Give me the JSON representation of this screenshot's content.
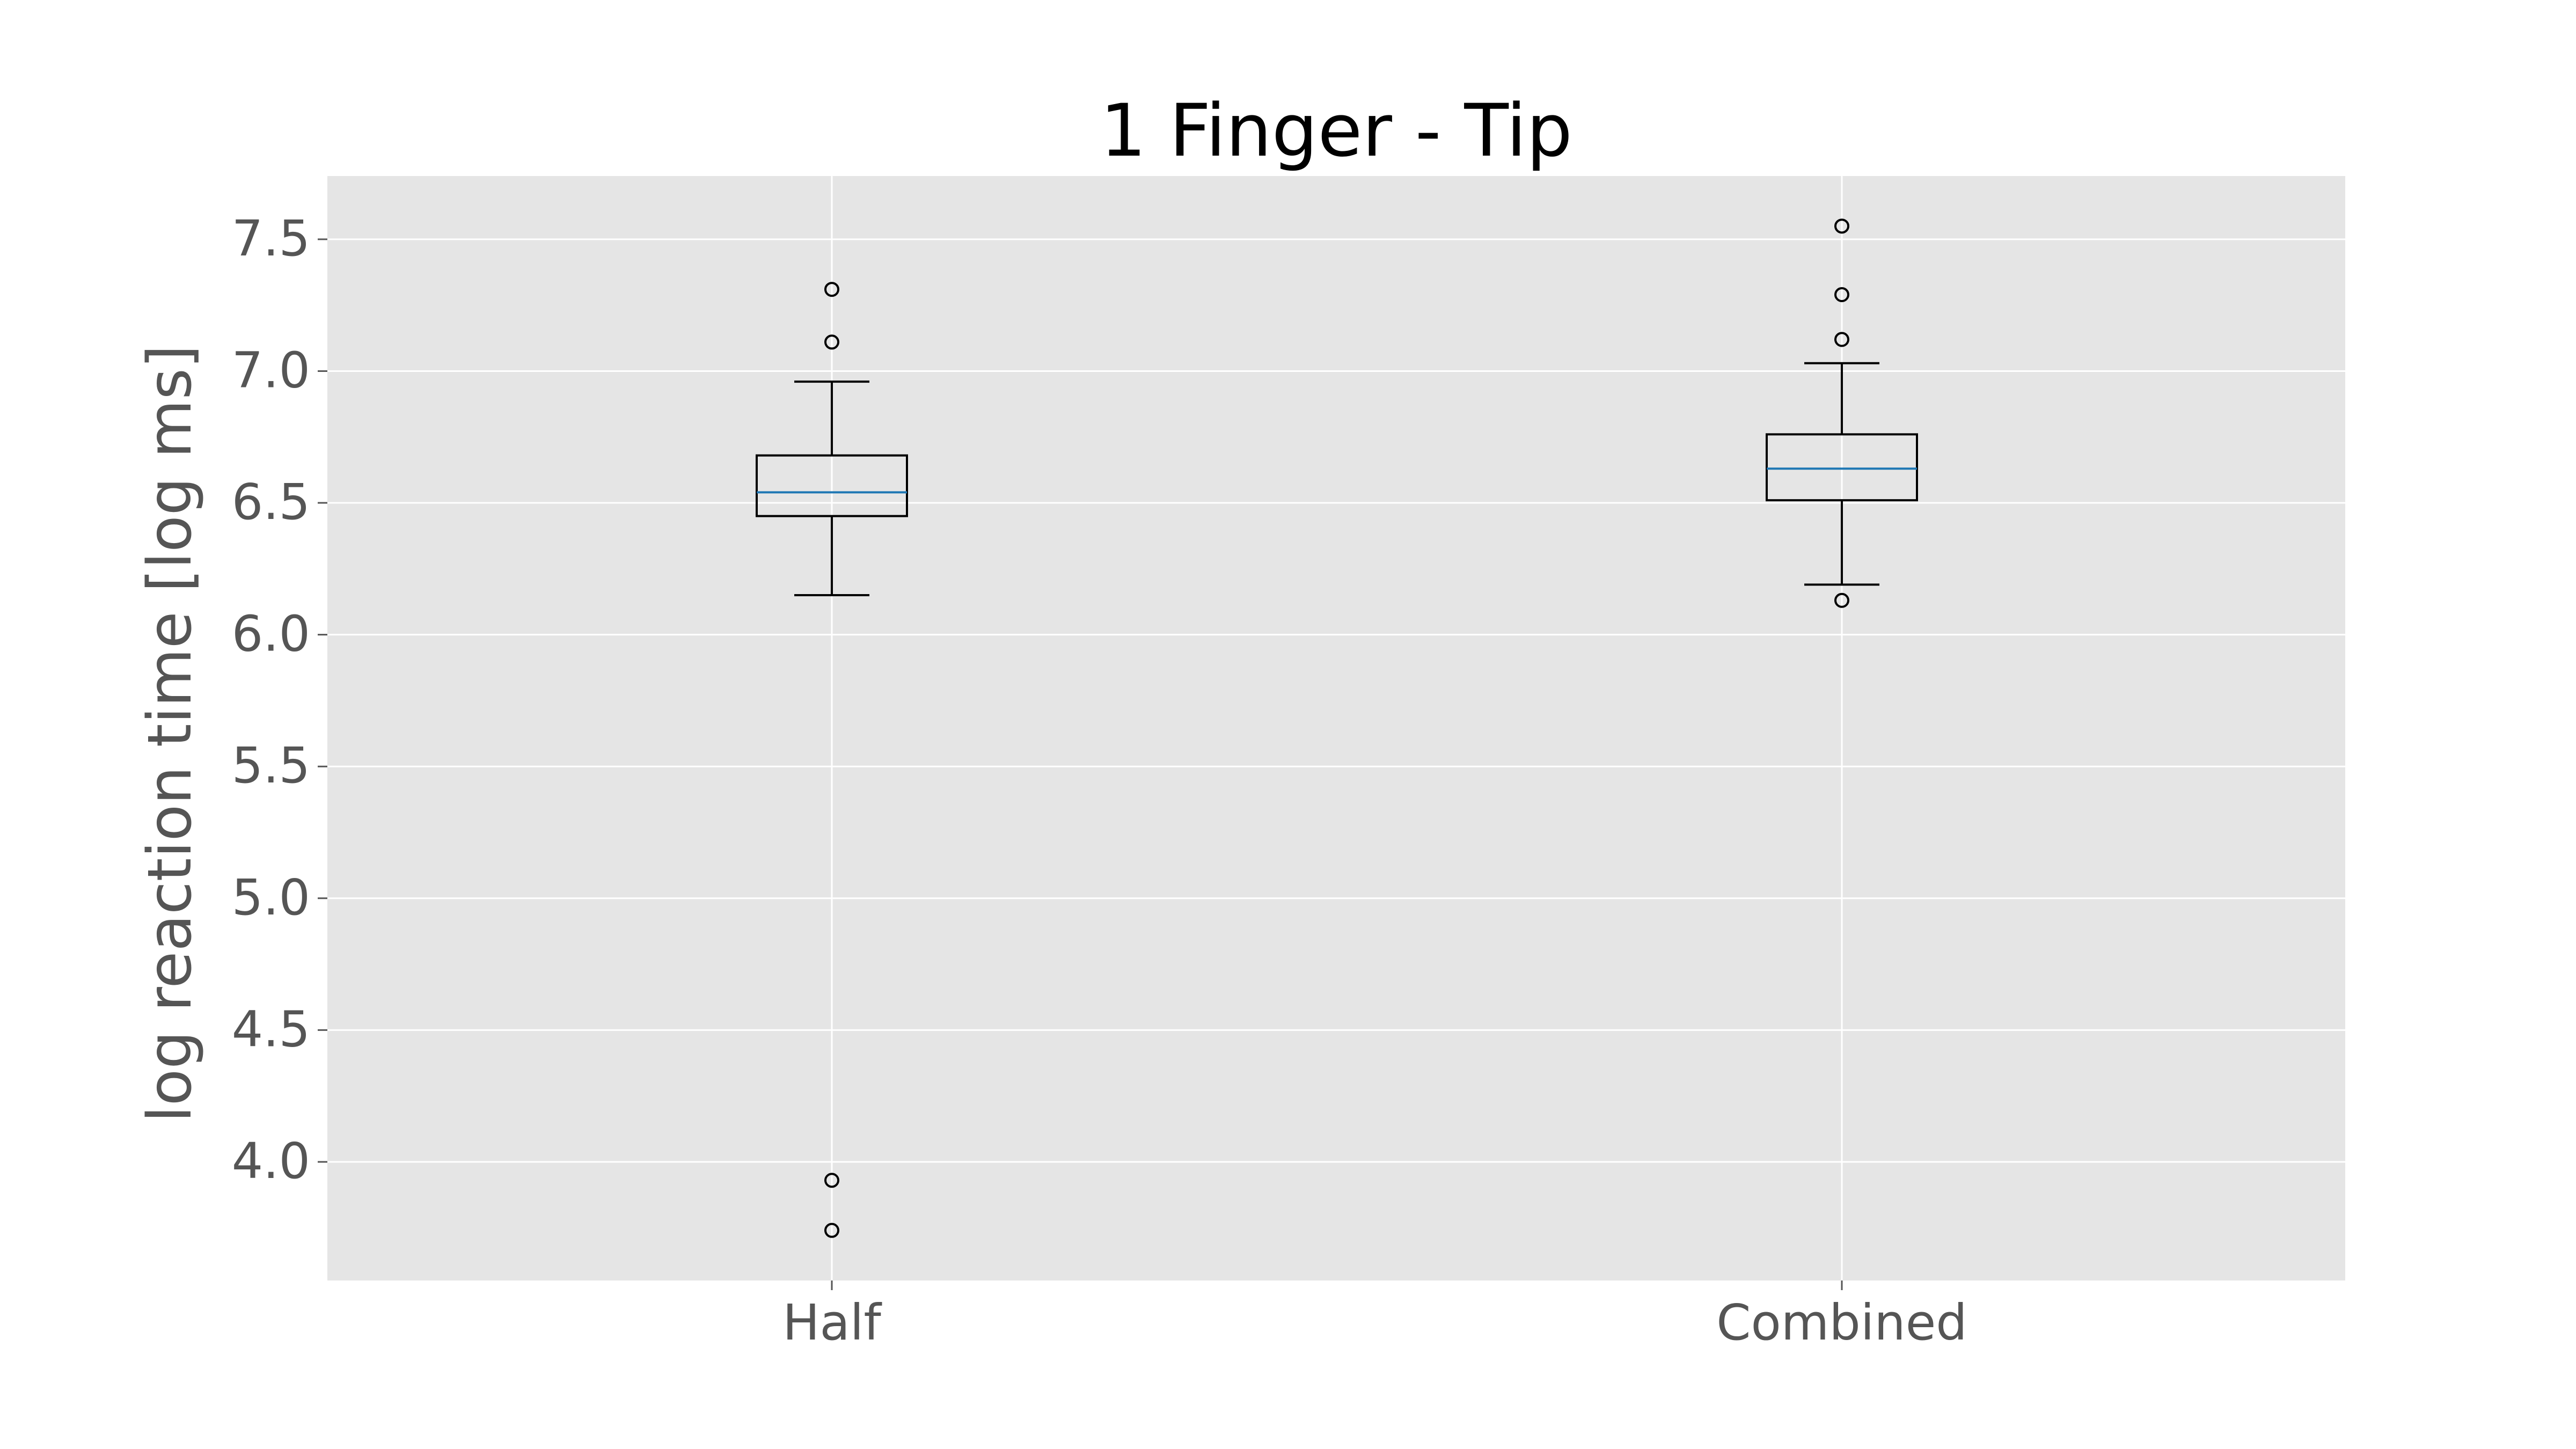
{
  "chart_data": {
    "type": "box",
    "title": "1 Finger - Tip",
    "xlabel": "",
    "ylabel": "log reaction time [log ms]",
    "categories": [
      "Half",
      "Combined"
    ],
    "ylim": [
      3.55,
      7.74
    ],
    "yticks": [
      4.0,
      4.5,
      5.0,
      5.5,
      6.0,
      6.5,
      7.0,
      7.5
    ],
    "ytick_labels": [
      "4.0",
      "4.5",
      "5.0",
      "5.5",
      "6.0",
      "6.5",
      "7.0",
      "7.5"
    ],
    "grid": true,
    "boxes": [
      {
        "category": "Half",
        "whisker_low": 6.15,
        "q1": 6.45,
        "median": 6.54,
        "q3": 6.68,
        "whisker_high": 6.96,
        "outliers": [
          7.31,
          7.11,
          3.93,
          3.74
        ]
      },
      {
        "category": "Combined",
        "whisker_low": 6.19,
        "q1": 6.51,
        "median": 6.63,
        "q3": 6.76,
        "whisker_high": 7.03,
        "outliers": [
          7.55,
          7.29,
          7.12,
          6.13
        ]
      }
    ],
    "colors": {
      "plot_background": "#e5e5e5",
      "grid": "#ffffff",
      "box": "#000000",
      "median": "#1f77b4",
      "tick_text": "#555555",
      "title_text": "#000000"
    }
  }
}
